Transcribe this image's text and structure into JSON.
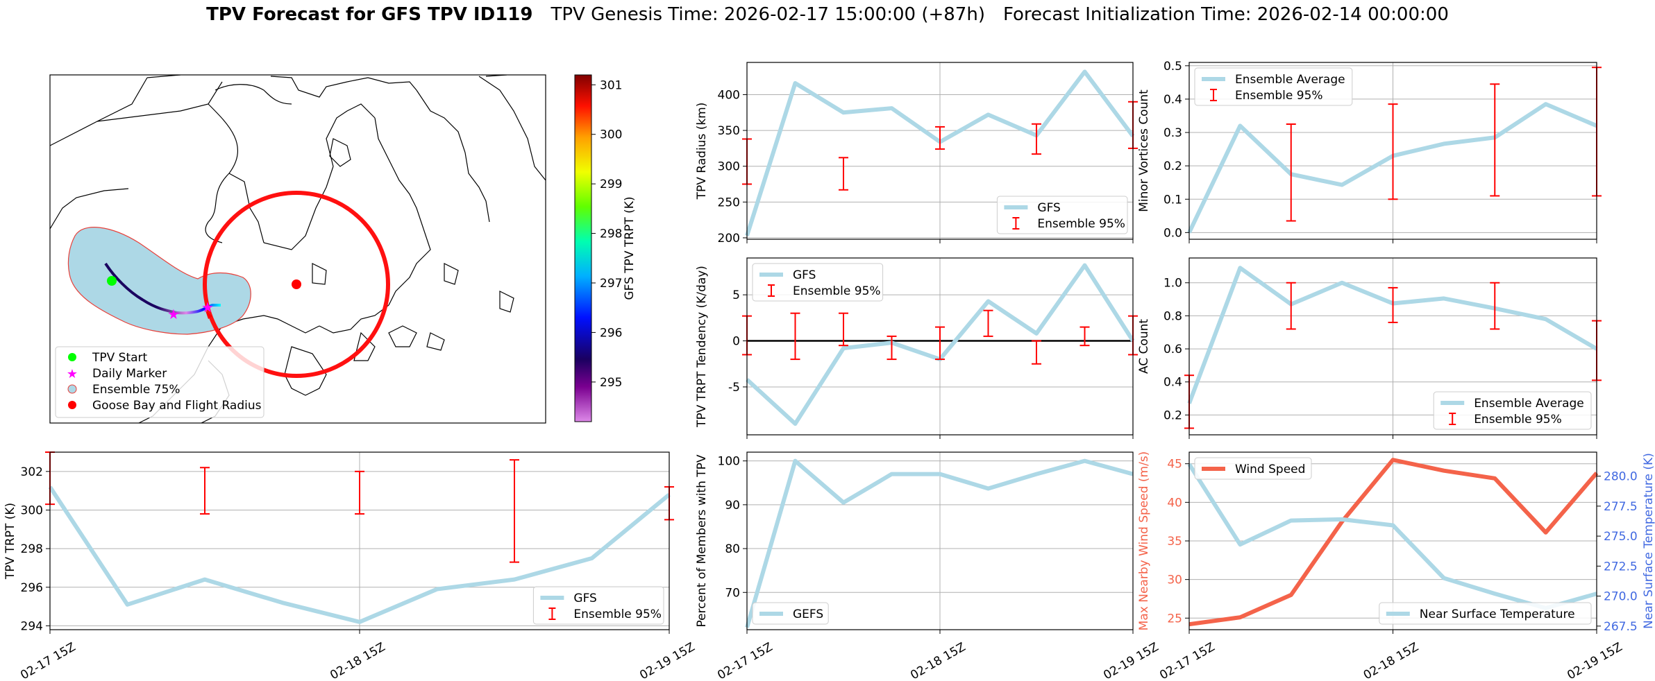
{
  "title": {
    "main": "TPV Forecast for GFS TPV ID119",
    "genesis": "TPV Genesis Time: 2026-02-17 15:00:00 (+87h)",
    "init": "Forecast Initialization Time: 2026-02-14 00:00:00"
  },
  "map": {
    "colorbar": {
      "label": "GFS TPV TRPT (K)",
      "ticks": [
        295,
        296,
        297,
        298,
        299,
        300,
        301
      ],
      "range": [
        294.2,
        301.2
      ]
    },
    "legend": [
      "TPV Start",
      "Daily Marker",
      "Ensemble 75%",
      "Goose Bay and Flight Radius"
    ],
    "colors": {
      "start": "#00ff00",
      "marker": "#ff00ff",
      "ensemble_fill": "#add8e6",
      "ensemble_edge": "#e8403a",
      "goose": "#ff0000"
    }
  },
  "chart_data": [
    {
      "id": "trpt",
      "type": "line",
      "title": "",
      "xlabel": "",
      "ylabel": "TPV TRPT (K)",
      "xticks": [
        "02-17 15Z",
        "02-18 15Z",
        "02-19 15Z"
      ],
      "ylim": [
        293.8,
        303
      ],
      "yticks": [
        294,
        296,
        298,
        300,
        302
      ],
      "series": [
        {
          "name": "GFS",
          "color": "#add8e6",
          "x": [
            0,
            0.25,
            0.5,
            0.75,
            1.0,
            1.25,
            1.5,
            1.75,
            2.0
          ],
          "y": [
            301.2,
            295.1,
            296.4,
            295.2,
            294.2,
            295.9,
            296.4,
            297.5,
            300.8
          ]
        }
      ],
      "errorbars": [
        {
          "name": "Ensemble 95%",
          "color": "#ff0000",
          "x": [
            0,
            0.5,
            1.0,
            1.5,
            2.0
          ],
          "low": [
            300.3,
            299.8,
            299.8,
            297.3,
            299.5
          ],
          "high": [
            303.0,
            302.2,
            302.0,
            302.6,
            301.2
          ]
        }
      ],
      "legend": [
        "GFS",
        "Ensemble 95%"
      ]
    },
    {
      "id": "radius",
      "type": "line",
      "title": "",
      "xlabel": "",
      "ylabel": "TPV Radius (km)",
      "xticks": [
        "02-17 15Z",
        "02-18 15Z",
        "02-19 15Z"
      ],
      "ylim": [
        198,
        445
      ],
      "yticks": [
        200,
        250,
        300,
        350,
        400
      ],
      "series": [
        {
          "name": "GFS",
          "color": "#add8e6",
          "x": [
            0,
            0.25,
            0.5,
            0.75,
            1.0,
            1.25,
            1.5,
            1.75,
            2.0
          ],
          "y": [
            203,
            416,
            375,
            381,
            334,
            372,
            343,
            432,
            342
          ]
        }
      ],
      "errorbars": [
        {
          "name": "Ensemble 95%",
          "color": "#ff0000",
          "x": [
            0,
            0.5,
            1.0,
            1.5,
            2.0
          ],
          "low": [
            275,
            267,
            324,
            317,
            325
          ],
          "high": [
            338,
            312,
            355,
            359,
            390
          ]
        }
      ],
      "legend": [
        "GFS",
        "Ensemble 95%"
      ]
    },
    {
      "id": "tendency",
      "type": "line",
      "title": "",
      "xlabel": "",
      "ylabel": "TPV TRPT Tendency (K/day)",
      "xticks": [
        "02-17 15Z",
        "02-18 15Z",
        "02-19 15Z"
      ],
      "ylim": [
        -10.2,
        9
      ],
      "yticks": [
        -5,
        0,
        5
      ],
      "series": [
        {
          "name": "GFS",
          "color": "#add8e6",
          "x": [
            0,
            0.25,
            0.5,
            0.75,
            1.0,
            1.25,
            1.5,
            1.75,
            2.0
          ],
          "y": [
            -4.2,
            -9.0,
            -0.8,
            -0.2,
            -2.0,
            4.3,
            0.8,
            8.2,
            0
          ]
        }
      ],
      "errorbars": [
        {
          "name": "Ensemble 95%",
          "color": "#ff0000",
          "x": [
            0,
            0.25,
            0.5,
            0.75,
            1.0,
            1.25,
            1.5,
            1.75,
            2.0
          ],
          "low": [
            -1.5,
            -2.0,
            -0.5,
            -2.0,
            -2.0,
            0.5,
            -2.5,
            -0.5,
            -1.5
          ],
          "high": [
            2.7,
            3.0,
            3.0,
            0.5,
            1.5,
            3.3,
            0,
            1.5,
            2.7
          ]
        }
      ],
      "hline": 0,
      "legend": [
        "GFS",
        "Ensemble 95%"
      ]
    },
    {
      "id": "percent",
      "type": "line",
      "title": "",
      "xlabel": "",
      "ylabel": "Percent of Members with TPV",
      "xticks": [
        "02-17 15Z",
        "02-18 15Z",
        "02-19 15Z"
      ],
      "ylim": [
        61.5,
        102
      ],
      "yticks": [
        70,
        80,
        90,
        100
      ],
      "series": [
        {
          "name": "GEFS",
          "color": "#add8e6",
          "x": [
            0,
            0.25,
            0.5,
            0.75,
            1.0,
            1.25,
            1.5,
            1.75,
            2.0
          ],
          "y": [
            62,
            100,
            90.5,
            97,
            97,
            93.7,
            97,
            100,
            97
          ]
        }
      ],
      "legend": [
        "GEFS"
      ]
    },
    {
      "id": "minor",
      "type": "line",
      "title": "",
      "xlabel": "",
      "ylabel": "Minor Vortices Count",
      "xticks": [
        "02-17 15Z",
        "02-18 15Z",
        "02-19 15Z"
      ],
      "ylim": [
        -0.02,
        0.51
      ],
      "yticks": [
        0.0,
        0.1,
        0.2,
        0.3,
        0.4,
        0.5
      ],
      "series": [
        {
          "name": "Ensemble Average",
          "color": "#add8e6",
          "x": [
            0,
            0.25,
            0.5,
            0.75,
            1.0,
            1.25,
            1.5,
            1.75,
            2.0
          ],
          "y": [
            0.0,
            0.32,
            0.175,
            0.143,
            0.23,
            0.266,
            0.285,
            0.385,
            0.32
          ]
        }
      ],
      "errorbars": [
        {
          "name": "Ensemble 95%",
          "color": "#ff0000",
          "x": [
            0.5,
            1.0,
            1.5,
            2.0
          ],
          "low": [
            0.035,
            0.1,
            0.11,
            0.11
          ],
          "high": [
            0.325,
            0.385,
            0.445,
            0.495
          ]
        }
      ],
      "legend": [
        "Ensemble Average",
        "Ensemble 95%"
      ]
    },
    {
      "id": "ac",
      "type": "line",
      "title": "",
      "xlabel": "",
      "ylabel": "AC Count",
      "xticks": [
        "02-17 15Z",
        "02-18 15Z",
        "02-19 15Z"
      ],
      "ylim": [
        0.08,
        1.15
      ],
      "yticks": [
        0.2,
        0.4,
        0.6,
        0.8,
        1.0
      ],
      "series": [
        {
          "name": "Ensemble Average",
          "color": "#add8e6",
          "x": [
            0,
            0.25,
            0.5,
            0.75,
            1.0,
            1.25,
            1.5,
            1.75,
            2.0
          ],
          "y": [
            0.27,
            1.09,
            0.87,
            1.0,
            0.875,
            0.905,
            0.845,
            0.78,
            0.6
          ]
        }
      ],
      "errorbars": [
        {
          "name": "Ensemble 95%",
          "color": "#ff0000",
          "x": [
            0,
            0.5,
            1.0,
            1.5,
            2.0
          ],
          "low": [
            0.12,
            0.72,
            0.76,
            0.72,
            0.41
          ],
          "high": [
            0.44,
            1.0,
            0.97,
            1.0,
            0.77
          ]
        }
      ],
      "legend": [
        "Ensemble Average",
        "Ensemble 95%"
      ]
    },
    {
      "id": "wind",
      "type": "line",
      "title": "",
      "xlabel": "",
      "ylabel": "Max Nearby Wind Speed (m/s)",
      "y2label": "Near Surface Temperature (K)",
      "xticks": [
        "02-17 15Z",
        "02-18 15Z",
        "02-19 15Z"
      ],
      "ylim": [
        23.5,
        46.5
      ],
      "yticks": [
        25,
        30,
        35,
        40,
        45
      ],
      "y2lim": [
        267.2,
        282.0
      ],
      "y2ticks": [
        267.5,
        270.0,
        272.5,
        275.0,
        277.5,
        280.0
      ],
      "series": [
        {
          "name": "Wind Speed",
          "color": "#f4634a",
          "axis": "left",
          "x": [
            0,
            0.25,
            0.5,
            0.75,
            1.0,
            1.25,
            1.5,
            1.75,
            2.0
          ],
          "y": [
            24.2,
            25.1,
            28.0,
            37.5,
            45.5,
            44.1,
            43.1,
            36.1,
            43.8
          ]
        },
        {
          "name": "Near Surface Temperature",
          "color": "#add8e6",
          "axis": "right",
          "x": [
            0,
            0.25,
            0.5,
            0.75,
            1.0,
            1.25,
            1.5,
            1.75,
            2.0
          ],
          "y": [
            281.0,
            274.3,
            276.3,
            276.4,
            275.9,
            271.5,
            270.2,
            269.0,
            270.2
          ]
        }
      ],
      "legend": [
        "Wind Speed",
        "Near Surface Temperature"
      ]
    }
  ]
}
